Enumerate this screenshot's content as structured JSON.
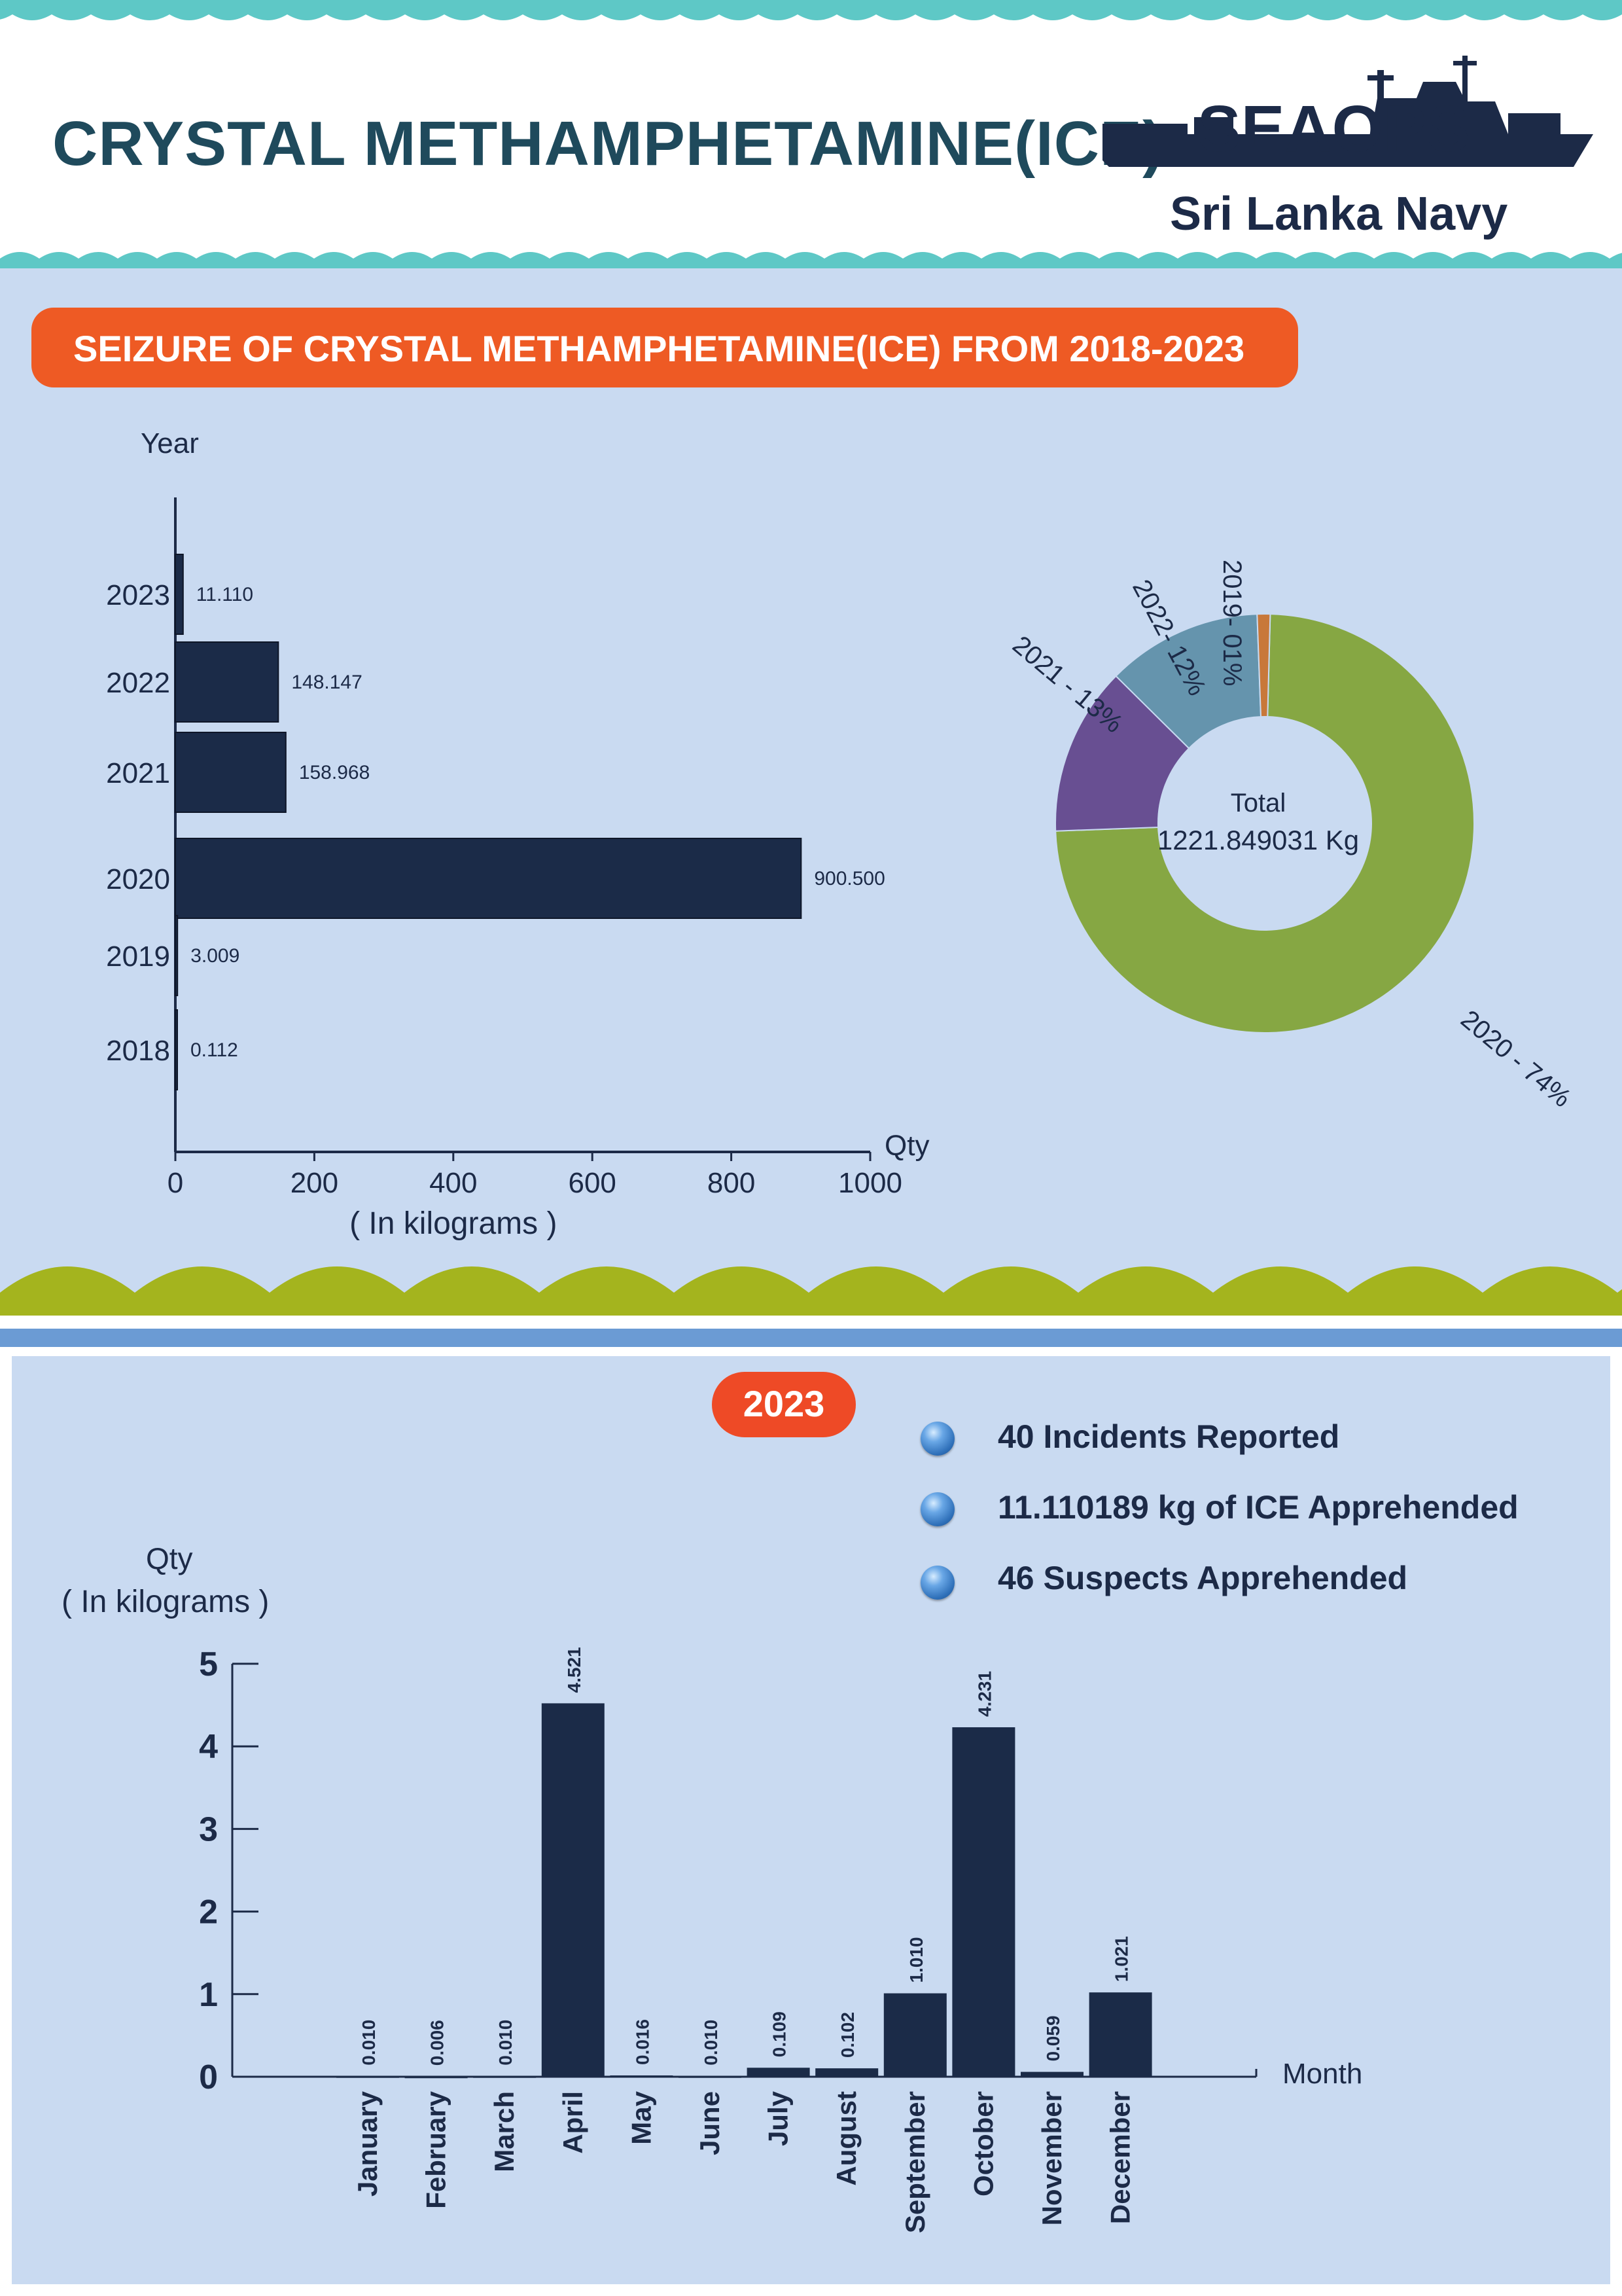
{
  "header": {
    "title": "CRYSTAL METHAMPHETAMINE(ICE)",
    "brand": "SEAOPS",
    "sub_brand": "Sri Lanka Navy"
  },
  "section1": {
    "banner": "SEIZURE OF CRYSTAL METHAMPHETAMINE(ICE) FROM 2018-2023"
  },
  "section2": {
    "year_badge": "2023",
    "stats": [
      "40 Incidents Reported",
      "11.110189 kg of ICE Apprehended",
      "46 Suspects Apprehended"
    ]
  },
  "colors": {
    "teal_wave": "#5ec8c6",
    "panel_bg": "#c9daf1",
    "bar": "#1b2b48",
    "orange": "#ee5a24",
    "olive_wave": "#a4b41e",
    "stripe": "#6b9bd4"
  },
  "chart_data": [
    {
      "type": "bar",
      "orientation": "horizontal",
      "categories": [
        "2023",
        "2022",
        "2021",
        "2020",
        "2019",
        "2018"
      ],
      "values": [
        11.11,
        148.147,
        158.968,
        900.5,
        3.009,
        0.112
      ],
      "value_labels": [
        "11.110",
        "148.147",
        "158.968",
        "900.500",
        "3.009",
        "0.112"
      ],
      "ylabel": "Year",
      "xlabel": "( In kilograms )",
      "x_axis_end_label": "Qty",
      "xlim": [
        0,
        1000
      ],
      "xticks": [
        "0",
        "200",
        "400",
        "600",
        "800",
        "1000"
      ],
      "grid": false
    },
    {
      "type": "pie",
      "style": "donut",
      "center_label": "Total",
      "center_value": "1221.849031 Kg",
      "slices": [
        {
          "label": "2020 - 74%",
          "value": 74,
          "color": "#86a743"
        },
        {
          "label": "2021 - 13%",
          "value": 13,
          "color": "#684f92"
        },
        {
          "label": "2022- 12%",
          "value": 12,
          "color": "#6594ad"
        },
        {
          "label": "2019- 01%",
          "value": 1,
          "color": "#c8783a"
        }
      ]
    },
    {
      "type": "bar",
      "categories": [
        "January",
        "February",
        "March",
        "April",
        "May",
        "June",
        "July",
        "August",
        "September",
        "October",
        "November",
        "December"
      ],
      "values": [
        0.01,
        0.006,
        0.01,
        4.521,
        0.016,
        0.01,
        0.109,
        0.102,
        1.01,
        4.231,
        0.059,
        1.021
      ],
      "value_labels": [
        "0.010",
        "0.006",
        "0.010",
        "4.521",
        "0.016",
        "0.010",
        "0.109",
        "0.102",
        "1.010",
        "4.231",
        "0.059",
        "1.021"
      ],
      "ylabel_line1": "Qty",
      "ylabel_line2": "( In kilograms )",
      "xlabel": "Month",
      "ylim": [
        0,
        5
      ],
      "yticks": [
        "0",
        "1",
        "2",
        "3",
        "4",
        "5"
      ],
      "grid": false
    }
  ]
}
